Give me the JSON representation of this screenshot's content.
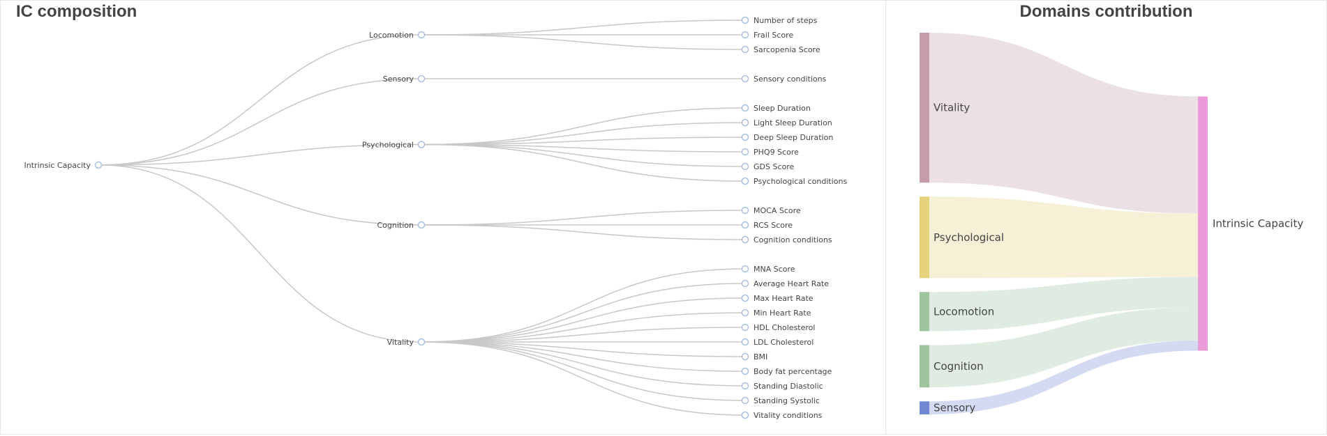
{
  "tree_panel": {
    "title": "IC composition",
    "root": "Intrinsic Capacity",
    "domains": [
      {
        "name": "Locomotion",
        "metrics": [
          "Number of steps",
          "Frail Score",
          "Sarcopenia Score"
        ]
      },
      {
        "name": "Sensory",
        "metrics": [
          "Sensory conditions"
        ]
      },
      {
        "name": "Psychological",
        "metrics": [
          "Sleep Duration",
          "Light Sleep Duration",
          "Deep Sleep Duration",
          "PHQ9 Score",
          "GDS Score",
          "Psychological conditions"
        ]
      },
      {
        "name": "Cognition",
        "metrics": [
          "MOCA Score",
          "RCS Score",
          "Cognition conditions"
        ]
      },
      {
        "name": "Vitality",
        "metrics": [
          "MNA Score",
          "Average Heart Rate",
          "Max Heart Rate",
          "Min Heart Rate",
          "HDL Cholesterol",
          "LDL Cholesterol",
          "BMI",
          "Body fat percentage",
          "Standing Diastolic",
          "Standing Systolic",
          "Vitality conditions"
        ]
      }
    ],
    "colors": {
      "link": "#c8c8c8",
      "node_stroke": "#a8c0de",
      "label": "#444444"
    }
  },
  "sankey_panel": {
    "title": "Domains contribution",
    "target": "Intrinsic Capacity",
    "target_color": "#ea9bd8",
    "flows": [
      {
        "source": "Vitality",
        "share": 0.46,
        "color": "#c49da9",
        "link_color": "#e8dbe1"
      },
      {
        "source": "Psychological",
        "share": 0.25,
        "color": "#e6d27a",
        "link_color": "#f5edcf"
      },
      {
        "source": "Locomotion",
        "share": 0.12,
        "color": "#9ec49e",
        "link_color": "#dae7dc"
      },
      {
        "source": "Cognition",
        "share": 0.13,
        "color": "#9ec49e",
        "link_color": "#dae7dc"
      },
      {
        "source": "Sensory",
        "share": 0.04,
        "color": "#7388d2",
        "link_color": "#cbd4ee"
      }
    ]
  }
}
